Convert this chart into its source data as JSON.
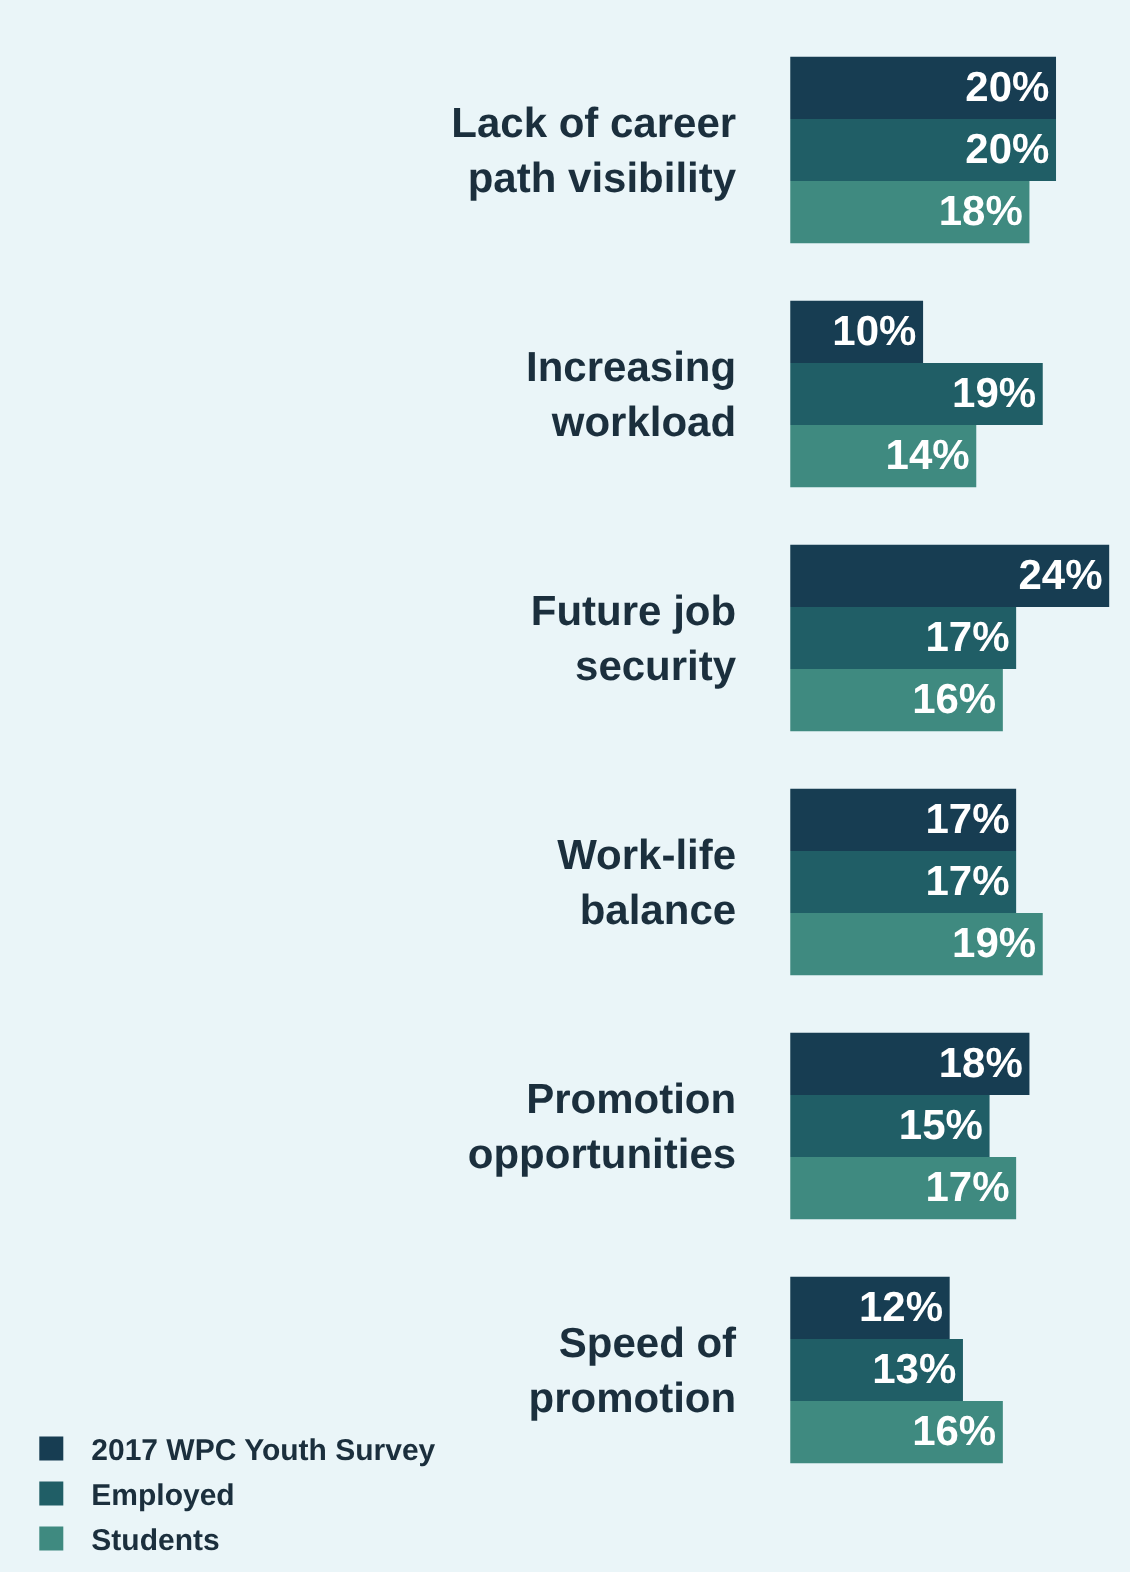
{
  "chart_data": {
    "type": "bar",
    "orientation": "horizontal",
    "categories": [
      "Lack of career path visibility",
      "Increasing workload",
      "Future job security",
      "Work-life balance",
      "Promotion opportunities",
      "Speed of promotion"
    ],
    "series": [
      {
        "name": "2017 WPC Youth Survey",
        "color": "#173d52",
        "values": [
          20,
          10,
          24,
          17,
          18,
          12
        ],
        "value_labels": [
          "20%",
          "10%",
          "24%",
          "17%",
          "18%",
          "12%"
        ]
      },
      {
        "name": "Employed",
        "color": "#205e66",
        "values": [
          20,
          19,
          17,
          17,
          15,
          13
        ],
        "value_labels": [
          "20%",
          "19%",
          "17%",
          "17%",
          "15%",
          "13%"
        ]
      },
      {
        "name": "Students",
        "color": "#3f8a80",
        "values": [
          18,
          14,
          16,
          19,
          17,
          16
        ],
        "value_labels": [
          "18%",
          "14%",
          "16%",
          "19%",
          "17%",
          "16%"
        ]
      }
    ],
    "legend": "bottom"
  }
}
